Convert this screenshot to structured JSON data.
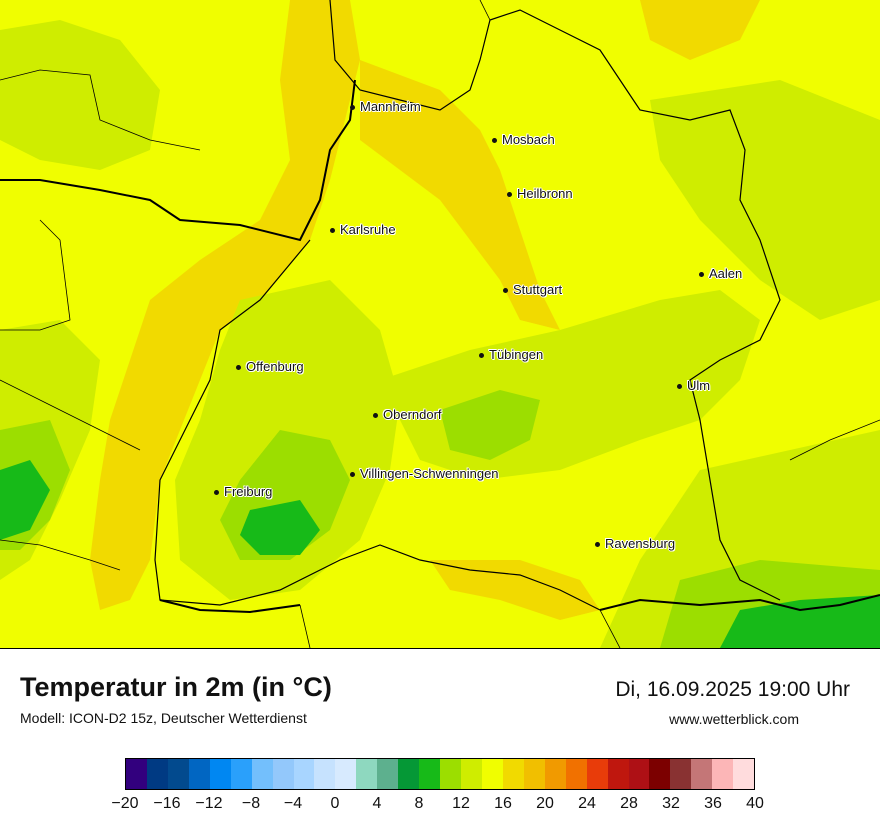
{
  "title": "Temperatur in 2m (in °C)",
  "model": "Modell: ICON-D2 15z, Deutscher Wetterdienst",
  "datetime": "Di, 16.09.2025 19:00 Uhr",
  "website": "www.wetterblick.com",
  "cities": {
    "mannheim": "Mannheim",
    "mosbach": "Mosbach",
    "heilbronn": "Heilbronn",
    "karlsruhe": "Karlsruhe",
    "aalen": "Aalen",
    "stuttgart": "Stuttgart",
    "tuebingen": "Tübingen",
    "offenburg": "Offenburg",
    "ulm": "Ulm",
    "oberndorf": "Oberndorf",
    "villingen": "Villingen-Schwenningen",
    "freiburg": "Freiburg",
    "ravensburg": "Ravensburg"
  },
  "colorbar": {
    "colors": [
      "#32007e",
      "#003a83",
      "#024a8e",
      "#0166c2",
      "#0087f2",
      "#2aa0fb",
      "#73bffc",
      "#93c8fb",
      "#a8d5ff",
      "#c6e2fe",
      "#d7eafe",
      "#8ed8bf",
      "#5db08e",
      "#059836",
      "#17ba18",
      "#9cde00",
      "#cfed00",
      "#f0fe00",
      "#f1da00",
      "#f1bf00",
      "#f19a00",
      "#f17100",
      "#e83c0a",
      "#bf170e",
      "#ae1015",
      "#7c0000",
      "#893232",
      "#c47677",
      "#fcb6b7",
      "#ffdcdd"
    ],
    "ticks": [
      "−20",
      "−16",
      "−12",
      "−8",
      "−4",
      "0",
      "4",
      "8",
      "12",
      "16",
      "20",
      "24",
      "28",
      "32",
      "36",
      "40"
    ]
  }
}
